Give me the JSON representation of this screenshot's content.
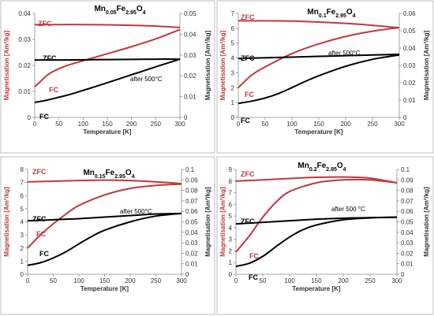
{
  "chart_data": [
    {
      "type": "line",
      "title": "Mn0.05Fe2.95O4",
      "title_parts": [
        {
          "t": "Mn",
          "s": "n"
        },
        {
          "t": "0.05",
          "s": "sub"
        },
        {
          "t": "Fe",
          "s": "n"
        },
        {
          "t": "2.95",
          "s": "sub"
        },
        {
          "t": "O",
          "s": "n"
        },
        {
          "t": "4",
          "s": "sub"
        }
      ],
      "xlabel": "Temperature [K]",
      "ylabel_left": "Magnetisation [Am²/kg]",
      "ylabel_right": "Magnetisation [Am²/kg]",
      "xlim": [
        0,
        300
      ],
      "ylim_left": [
        0,
        0.04
      ],
      "ylim_right": [
        0,
        0.05
      ],
      "xticks": [
        "0",
        "50",
        "100",
        "150",
        "200",
        "250",
        "300"
      ],
      "yticks_left": [
        "0",
        "0.01",
        "0.02",
        "0.03",
        "0.04"
      ],
      "yticks_right": [
        "0",
        "0.01",
        "0.02",
        "0.03",
        "0.04",
        "0.05"
      ],
      "annotation": "after 500°C",
      "series": [
        {
          "name": "ZFC",
          "axis": "left",
          "color": "#c0393b",
          "x": [
            0,
            50,
            100,
            150,
            200,
            250,
            300
          ],
          "values": [
            0.0357,
            0.0357,
            0.0357,
            0.0356,
            0.0354,
            0.0351,
            0.0346
          ]
        },
        {
          "name": "FC",
          "axis": "left",
          "color": "#c0393b",
          "x": [
            0,
            10,
            30,
            60,
            100,
            150,
            200,
            250,
            300
          ],
          "values": [
            0.0118,
            0.0135,
            0.0168,
            0.0195,
            0.0218,
            0.0245,
            0.0272,
            0.0302,
            0.0338
          ]
        },
        {
          "name": "ZFC",
          "axis": "right",
          "color": "#000000",
          "x": [
            0,
            50,
            100,
            150,
            200,
            250,
            300
          ],
          "values": [
            0.0276,
            0.0276,
            0.0277,
            0.0278,
            0.0279,
            0.028,
            0.028
          ]
        },
        {
          "name": "FC",
          "axis": "right",
          "color": "#000000",
          "x": [
            0,
            25,
            50,
            75,
            100,
            125,
            150,
            200,
            250,
            300
          ],
          "values": [
            0.0072,
            0.0083,
            0.0097,
            0.0112,
            0.013,
            0.0148,
            0.0167,
            0.0205,
            0.0243,
            0.028
          ]
        }
      ]
    },
    {
      "type": "line",
      "title": "Mn0.1Fe2.95O4",
      "title_parts": [
        {
          "t": "Mn",
          "s": "n"
        },
        {
          "t": "0.1",
          "s": "sub"
        },
        {
          "t": "Fe",
          "s": "n"
        },
        {
          "t": "2.95",
          "s": "sub"
        },
        {
          "t": "O",
          "s": "n"
        },
        {
          "t": "4",
          "s": "sub"
        }
      ],
      "xlabel": "Temperature [K]",
      "ylabel_left": "Magnetisation [Am²/kg]",
      "ylabel_right": "Magnetisation [Am²/kg]",
      "xlim": [
        0,
        300
      ],
      "ylim_left": [
        0,
        7
      ],
      "ylim_right": [
        0,
        0.06
      ],
      "xticks": [
        "0",
        "50",
        "100",
        "150",
        "200",
        "250",
        "300"
      ],
      "yticks_left": [
        "0",
        "1",
        "2",
        "3",
        "4",
        "5",
        "6",
        "7"
      ],
      "yticks_right": [
        "0",
        "0.01",
        "0.02",
        "0.03",
        "0.04",
        "0.05",
        "0.06"
      ],
      "annotation": "after 500°C",
      "series": [
        {
          "name": "ZFC",
          "axis": "left",
          "color": "#c0393b",
          "x": [
            0,
            50,
            100,
            150,
            200,
            250,
            300
          ],
          "values": [
            6.5,
            6.5,
            6.48,
            6.42,
            6.33,
            6.2,
            6.03
          ]
        },
        {
          "name": "FC",
          "axis": "left",
          "color": "#c0393b",
          "x": [
            0,
            25,
            50,
            100,
            150,
            200,
            250,
            300
          ],
          "values": [
            2.0,
            2.85,
            3.4,
            4.3,
            4.95,
            5.45,
            5.8,
            6.05
          ]
        },
        {
          "name": "ZFC",
          "axis": "right",
          "color": "#000000",
          "x": [
            0,
            50,
            100,
            150,
            200,
            250,
            300
          ],
          "values": [
            0.034,
            0.0344,
            0.0348,
            0.0352,
            0.0356,
            0.036,
            0.0364
          ]
        },
        {
          "name": "FC",
          "axis": "right",
          "color": "#000000",
          "x": [
            0,
            25,
            50,
            75,
            100,
            125,
            150,
            200,
            250,
            300
          ],
          "values": [
            0.0081,
            0.0094,
            0.0112,
            0.0138,
            0.0172,
            0.0208,
            0.024,
            0.0295,
            0.0335,
            0.036
          ]
        }
      ]
    },
    {
      "type": "line",
      "title": "Mn0.15Fe2.95O4",
      "title_parts": [
        {
          "t": "Mn",
          "s": "n"
        },
        {
          "t": "0.15",
          "s": "sub"
        },
        {
          "t": "Fe",
          "s": "n"
        },
        {
          "t": "2.95",
          "s": "sub"
        },
        {
          "t": "O",
          "s": "n"
        },
        {
          "t": "4",
          "s": "sub"
        }
      ],
      "xlabel": "Temperature [K]",
      "ylabel_left": "Magnetisation [Am²/kg]",
      "ylabel_right": "Magnetisation [Am²/kg]",
      "xlim": [
        0,
        300
      ],
      "ylim_left": [
        0,
        8
      ],
      "ylim_right": [
        0,
        0.1
      ],
      "xticks": [
        "0",
        "50",
        "100",
        "150",
        "200",
        "250",
        "300"
      ],
      "yticks_left": [
        "0",
        "1",
        "2",
        "3",
        "4",
        "5",
        "6",
        "7",
        "8"
      ],
      "yticks_right": [
        "0",
        "0.01",
        "0.02",
        "0.03",
        "0.04",
        "0.05",
        "0.06",
        "0.07",
        "0.08",
        "0.09",
        "0.1"
      ],
      "annotation": "after 500°C",
      "series": [
        {
          "name": "ZFC",
          "axis": "left",
          "color": "#c0393b",
          "x": [
            0,
            50,
            100,
            150,
            200,
            250,
            300
          ],
          "values": [
            7.05,
            7.1,
            7.15,
            7.18,
            7.15,
            7.05,
            6.92
          ]
        },
        {
          "name": "FC",
          "axis": "left",
          "color": "#c0393b",
          "x": [
            0,
            25,
            50,
            75,
            100,
            150,
            200,
            250,
            300
          ],
          "values": [
            2.0,
            3.0,
            3.85,
            4.6,
            5.25,
            6.05,
            6.55,
            6.78,
            6.88
          ]
        },
        {
          "name": "ZFC",
          "axis": "right",
          "color": "#000000",
          "x": [
            0,
            50,
            100,
            150,
            200,
            250,
            300
          ],
          "values": [
            0.051,
            0.052,
            0.053,
            0.0545,
            0.056,
            0.0575,
            0.058
          ]
        },
        {
          "name": "FC",
          "axis": "right",
          "color": "#000000",
          "x": [
            0,
            25,
            50,
            75,
            100,
            125,
            150,
            200,
            250,
            300
          ],
          "values": [
            0.0085,
            0.011,
            0.0155,
            0.0215,
            0.029,
            0.036,
            0.042,
            0.05,
            0.0555,
            0.058
          ]
        }
      ]
    },
    {
      "type": "line",
      "title": "Mn0.2Fe2.95O4",
      "title_parts": [
        {
          "t": "Mn",
          "s": "n"
        },
        {
          "t": "0.2",
          "s": "sub"
        },
        {
          "t": "Fe",
          "s": "n"
        },
        {
          "t": "2.95",
          "s": "sub"
        },
        {
          "t": "O",
          "s": "n"
        },
        {
          "t": "4",
          "s": "sub"
        }
      ],
      "xlabel": "Temperature [K]",
      "ylabel_left": "Magnetisation [Am²/kg]",
      "ylabel_right": "Magnetisation [Am²/kg]",
      "xlim": [
        0,
        300
      ],
      "ylim_left": [
        0,
        9
      ],
      "ylim_right": [
        0,
        0.1
      ],
      "xticks": [
        "0",
        "50",
        "100",
        "150",
        "200",
        "250",
        "300"
      ],
      "yticks_left": [
        "0",
        "1",
        "2",
        "3",
        "4",
        "5",
        "6",
        "7",
        "8",
        "9"
      ],
      "yticks_right": [
        "0",
        "0.01",
        "0.02",
        "0.03",
        "0.04",
        "0.05",
        "0.06",
        "0.07",
        "0.08",
        "0.09",
        "0.1"
      ],
      "annotation": "after 500 °C",
      "series": [
        {
          "name": "ZFC",
          "axis": "left",
          "color": "#c0393b",
          "x": [
            0,
            50,
            100,
            150,
            200,
            250,
            300
          ],
          "values": [
            8.0,
            8.1,
            8.22,
            8.32,
            8.35,
            8.25,
            7.85
          ]
        },
        {
          "name": "FC",
          "axis": "left",
          "color": "#c0393b",
          "x": [
            0,
            25,
            50,
            75,
            100,
            150,
            200,
            250,
            300
          ],
          "values": [
            1.9,
            3.3,
            4.9,
            6.2,
            7.1,
            7.85,
            8.1,
            8.1,
            7.85
          ]
        },
        {
          "name": "ZFC",
          "axis": "right",
          "color": "#000000",
          "x": [
            0,
            50,
            100,
            150,
            200,
            250,
            300
          ],
          "values": [
            0.048,
            0.0495,
            0.051,
            0.0525,
            0.0535,
            0.054,
            0.0543
          ]
        },
        {
          "name": "FC",
          "axis": "right",
          "color": "#000000",
          "x": [
            0,
            25,
            50,
            75,
            100,
            125,
            150,
            200,
            250,
            300
          ],
          "values": [
            0.0075,
            0.0105,
            0.017,
            0.0265,
            0.0355,
            0.0425,
            0.047,
            0.052,
            0.0538,
            0.0545
          ]
        }
      ]
    }
  ]
}
